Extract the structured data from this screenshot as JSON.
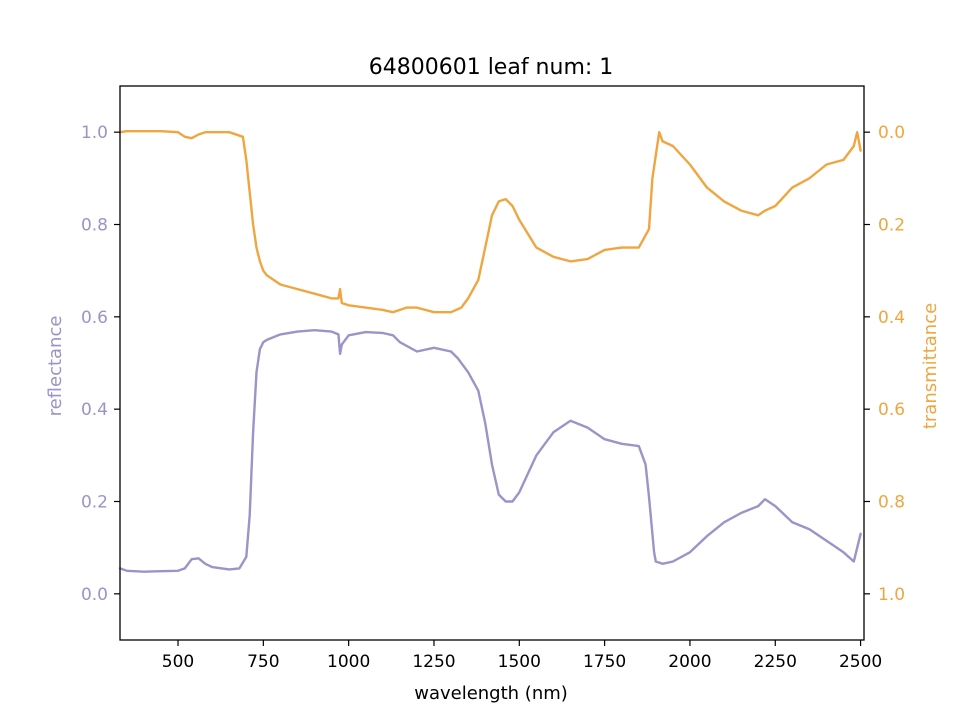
{
  "chart_data": {
    "type": "line",
    "title": "64800601 leaf num: 1",
    "xlabel": "wavelength (nm)",
    "xlim": [
      330,
      2510
    ],
    "x_ticks": [
      500,
      750,
      1000,
      1250,
      1500,
      1750,
      2000,
      2250,
      2500
    ],
    "grid": false,
    "legend": "none",
    "axes": {
      "left": {
        "label": "reflectance",
        "color": "#9a94c8",
        "lim": [
          -0.1,
          1.1
        ],
        "ticks": [
          "0.0",
          "0.2",
          "0.4",
          "0.6",
          "0.8",
          "1.0"
        ]
      },
      "right": {
        "label": "transmittance",
        "color": "#f0a640",
        "lim": [
          1.1,
          -0.1
        ],
        "inverted": true,
        "ticks": [
          "0.0",
          "0.2",
          "0.4",
          "0.6",
          "0.8",
          "1.0"
        ]
      }
    },
    "series": [
      {
        "axis": "left",
        "color": "#9a94c8",
        "x": [
          330,
          350,
          400,
          450,
          500,
          520,
          540,
          560,
          580,
          600,
          650,
          680,
          700,
          710,
          720,
          730,
          740,
          750,
          760,
          780,
          800,
          850,
          900,
          950,
          970,
          975,
          980,
          1000,
          1050,
          1100,
          1130,
          1150,
          1200,
          1250,
          1300,
          1320,
          1350,
          1380,
          1400,
          1420,
          1440,
          1460,
          1480,
          1500,
          1550,
          1600,
          1650,
          1700,
          1750,
          1800,
          1850,
          1870,
          1880,
          1890,
          1895,
          1900,
          1920,
          1950,
          2000,
          2050,
          2100,
          2150,
          2200,
          2220,
          2250,
          2300,
          2350,
          2400,
          2450,
          2480,
          2490,
          2500
        ],
        "y": [
          0.055,
          0.05,
          0.048,
          0.049,
          0.05,
          0.055,
          0.075,
          0.077,
          0.065,
          0.058,
          0.053,
          0.055,
          0.08,
          0.17,
          0.35,
          0.48,
          0.53,
          0.545,
          0.55,
          0.556,
          0.562,
          0.568,
          0.571,
          0.568,
          0.562,
          0.52,
          0.54,
          0.56,
          0.567,
          0.565,
          0.56,
          0.545,
          0.525,
          0.533,
          0.525,
          0.51,
          0.48,
          0.44,
          0.37,
          0.28,
          0.215,
          0.2,
          0.2,
          0.22,
          0.3,
          0.35,
          0.375,
          0.36,
          0.335,
          0.325,
          0.32,
          0.28,
          0.21,
          0.13,
          0.09,
          0.07,
          0.065,
          0.07,
          0.09,
          0.125,
          0.155,
          0.175,
          0.19,
          0.205,
          0.19,
          0.155,
          0.14,
          0.115,
          0.09,
          0.07,
          0.1,
          0.13
        ]
      },
      {
        "axis": "right",
        "color": "#f0a640",
        "x": [
          330,
          350,
          400,
          450,
          500,
          520,
          540,
          560,
          580,
          600,
          650,
          690,
          700,
          710,
          720,
          730,
          740,
          750,
          760,
          780,
          800,
          850,
          900,
          950,
          970,
          975,
          980,
          1000,
          1050,
          1100,
          1130,
          1150,
          1170,
          1200,
          1250,
          1300,
          1330,
          1350,
          1380,
          1400,
          1420,
          1440,
          1460,
          1480,
          1500,
          1550,
          1600,
          1650,
          1700,
          1750,
          1800,
          1850,
          1880,
          1890,
          1900,
          1910,
          1920,
          1950,
          2000,
          2050,
          2100,
          2150,
          2200,
          2220,
          2250,
          2300,
          2350,
          2400,
          2450,
          2480,
          2490,
          2500
        ],
        "y": [
          0.0,
          -0.002,
          -0.002,
          -0.002,
          0.0,
          0.01,
          0.013,
          0.005,
          0.0,
          0.0,
          0.0,
          0.01,
          0.06,
          0.13,
          0.2,
          0.25,
          0.28,
          0.3,
          0.31,
          0.32,
          0.33,
          0.34,
          0.35,
          0.36,
          0.36,
          0.34,
          0.37,
          0.375,
          0.38,
          0.385,
          0.39,
          0.385,
          0.38,
          0.38,
          0.39,
          0.39,
          0.38,
          0.36,
          0.32,
          0.25,
          0.18,
          0.15,
          0.145,
          0.16,
          0.19,
          0.25,
          0.27,
          0.28,
          0.275,
          0.255,
          0.25,
          0.25,
          0.21,
          0.1,
          0.05,
          0.0,
          0.02,
          0.03,
          0.07,
          0.12,
          0.15,
          0.17,
          0.18,
          0.17,
          0.16,
          0.12,
          0.1,
          0.07,
          0.06,
          0.03,
          0.0,
          0.04
        ]
      }
    ]
  }
}
